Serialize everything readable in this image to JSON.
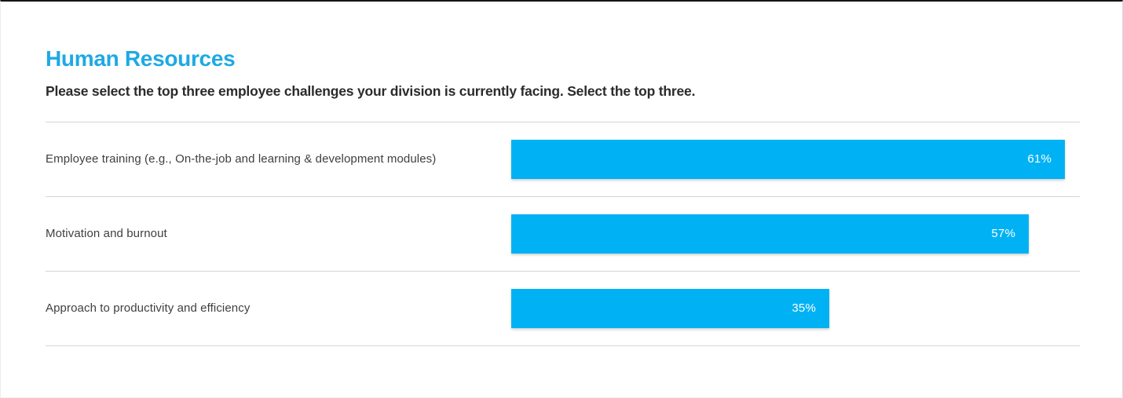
{
  "page": {
    "background_color": "#ffffff",
    "top_border_color": "#161616",
    "separator_color": "#d6d6d6"
  },
  "header": {
    "title": "Human Resources",
    "title_color": "#1ea9e5",
    "subtitle": "Please select the top three employee challenges your division is currently facing. Select the top three."
  },
  "chart_data": {
    "type": "bar",
    "orientation": "horizontal",
    "title": "Human Resources",
    "subtitle": "Please select the top three employee challenges your division is currently facing. Select the top three.",
    "categories": [
      "Employee training (e.g., On-the-job and learning & development modules)",
      "Motivation and burnout",
      "Approach to productivity and efficiency"
    ],
    "values": [
      61,
      57,
      35
    ],
    "value_labels": [
      "61%",
      "57%",
      "35%"
    ],
    "xlabel": "",
    "ylabel": "",
    "xlim": [
      0,
      100
    ],
    "grid": false,
    "legend": false,
    "bar_color": "#00b2f3",
    "value_label_color": "#ffffff",
    "value_label_position": "inside-right"
  }
}
